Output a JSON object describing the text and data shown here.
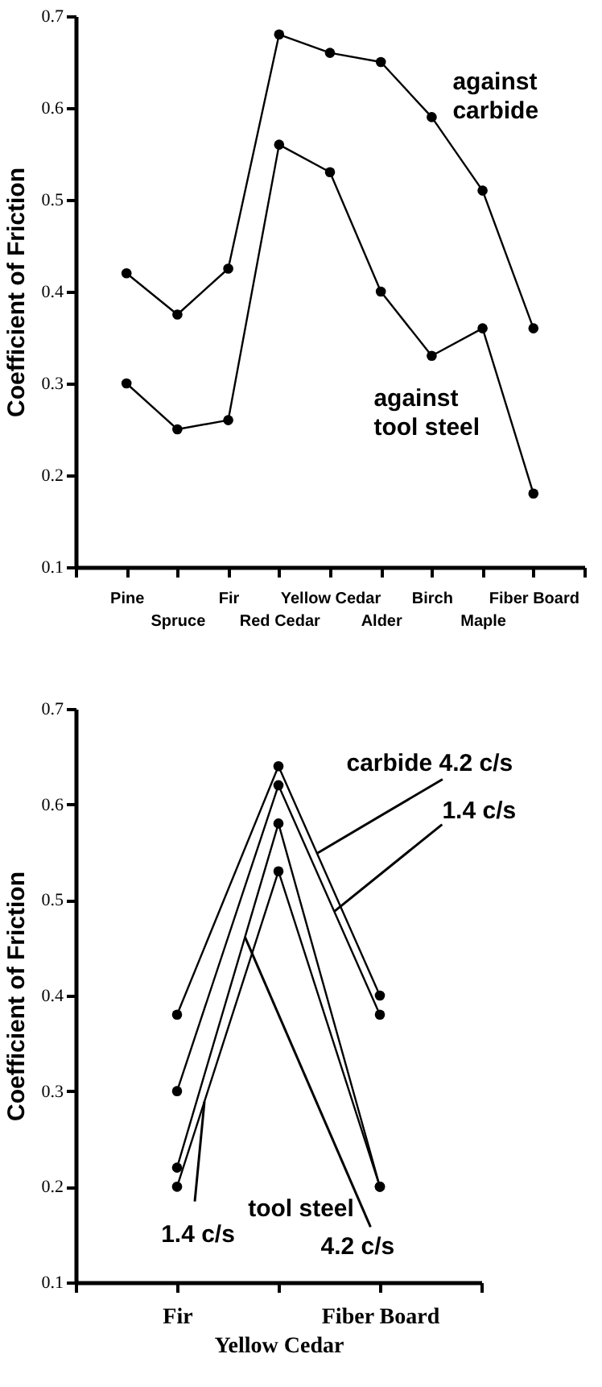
{
  "chart_data": [
    {
      "type": "line",
      "ylabel": "Coefficient of Friction",
      "categories": [
        null,
        "Pine",
        "Spruce",
        "Fir",
        "Red Cedar",
        "Yellow Cedar",
        "Alder",
        "Birch",
        "Maple",
        "Fiber Board",
        null
      ],
      "series": [
        {
          "name": "against carbide",
          "color": "#000000",
          "values": [
            null,
            0.42,
            0.375,
            0.425,
            0.68,
            0.66,
            0.65,
            0.59,
            0.51,
            0.36,
            null
          ]
        },
        {
          "name": "against tool steel",
          "color": "#000000",
          "values": [
            null,
            0.3,
            0.25,
            0.26,
            0.56,
            0.53,
            0.4,
            0.33,
            0.36,
            0.18,
            null
          ]
        }
      ],
      "ylim": [
        0.1,
        0.7
      ],
      "yticks": [
        0.1,
        0.2,
        0.3,
        0.4,
        0.5,
        0.6,
        0.7
      ],
      "marker": "circle",
      "line_style": "solid",
      "grid": false,
      "legend": false
    },
    {
      "type": "line",
      "ylabel": "Coefficient of Friction",
      "categories": [
        null,
        "Fir",
        "Yellow Cedar",
        "Fiber Board",
        null
      ],
      "series": [
        {
          "name": "carbide  4.2 c/s",
          "color": "#000000",
          "values": [
            null,
            0.38,
            0.64,
            0.4,
            null
          ]
        },
        {
          "name": "1.4 c/s",
          "color": "#000000",
          "values": [
            null,
            0.3,
            0.62,
            0.38,
            null
          ]
        },
        {
          "name": "4.2 c/s",
          "color": "#000000",
          "values": [
            null,
            0.22,
            0.58,
            0.2,
            null
          ]
        },
        {
          "name": "1.4 c/s",
          "color": "#000000",
          "values": [
            null,
            0.2,
            0.53,
            0.2,
            null
          ]
        }
      ],
      "annotations": [
        "tool steel"
      ],
      "ylim": [
        0.1,
        0.7
      ],
      "yticks": [
        0.1,
        0.2,
        0.3,
        0.4,
        0.5,
        0.6,
        0.7
      ],
      "marker": "circle",
      "line_style": "solid",
      "grid": false,
      "legend": false
    }
  ]
}
